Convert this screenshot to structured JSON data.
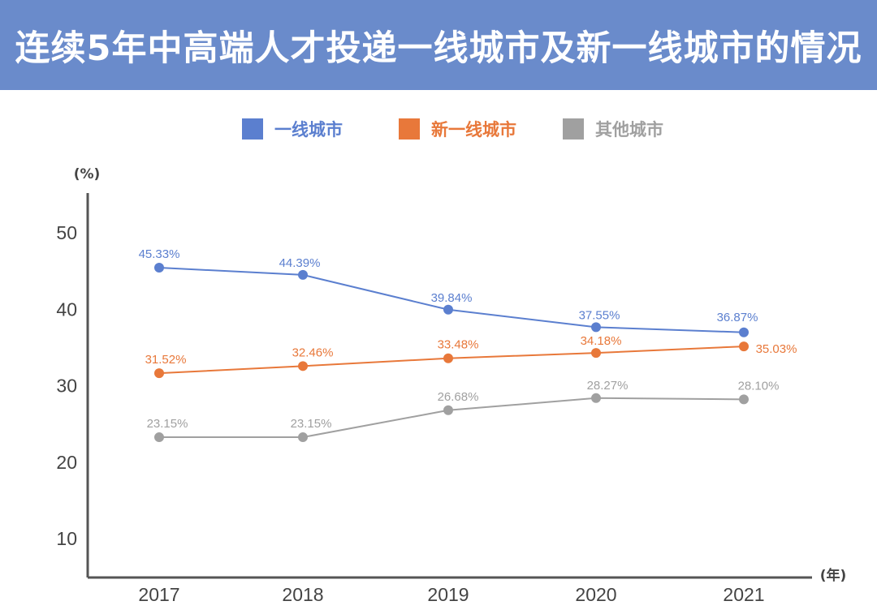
{
  "header": {
    "title": "连续5年中高端人才投递一线城市及新一线城市的情况"
  },
  "colors": {
    "title_bg": "#6a8bcb",
    "series_1": "#5b7fcf",
    "series_2": "#e8783a",
    "series_3": "#a0a0a0",
    "axis": "#555555",
    "tick_text": "#444444"
  },
  "chart_data": {
    "type": "line",
    "title": "连续5年中高端人才投递一线城市及新一线城市的情况",
    "x": [
      "2017",
      "2018",
      "2019",
      "2020",
      "2021"
    ],
    "xlabel": "(年)",
    "ylabel": "(%)",
    "ylim": [
      5,
      55
    ],
    "yticks": [
      10,
      20,
      30,
      40,
      50
    ],
    "grid": false,
    "legend_position": "top-center",
    "series": [
      {
        "name": "一线城市",
        "values": [
          45.33,
          44.39,
          39.84,
          37.55,
          36.87
        ],
        "labels": [
          "45.33%",
          "44.39%",
          "39.84%",
          "37.55%",
          "36.87%"
        ]
      },
      {
        "name": "新一线城市",
        "values": [
          31.52,
          32.46,
          33.48,
          34.18,
          35.03
        ],
        "labels": [
          "31.52%",
          "32.46%",
          "33.48%",
          "34.18%",
          "35.03%"
        ]
      },
      {
        "name": "其他城市",
        "values": [
          23.15,
          23.15,
          26.68,
          28.27,
          28.1
        ],
        "labels": [
          "23.15%",
          "23.15%",
          "26.68%",
          "28.27%",
          "28.10%"
        ]
      }
    ]
  }
}
